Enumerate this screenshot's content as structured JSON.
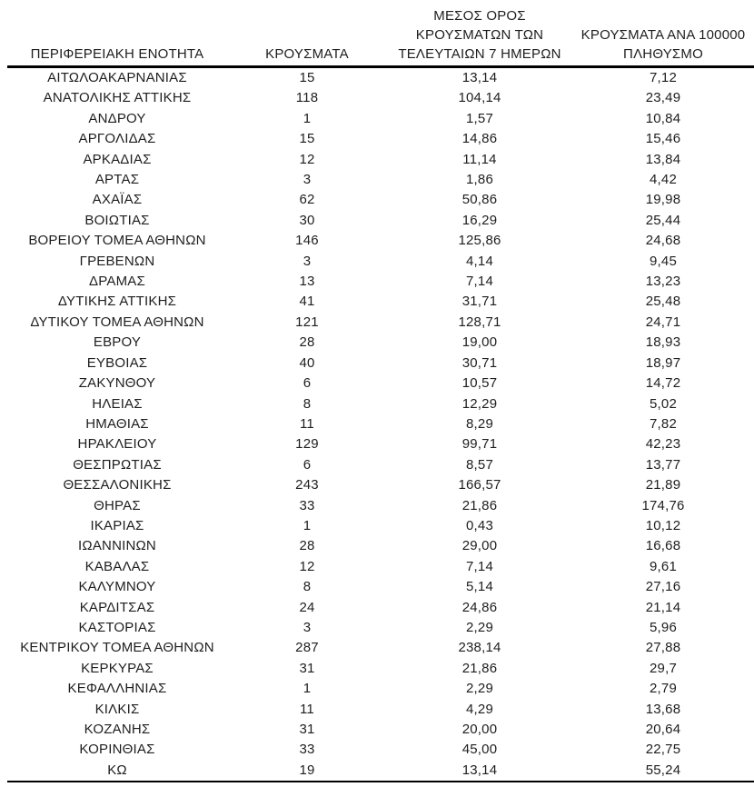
{
  "colors": {
    "background": "#ffffff",
    "text": "#1e1e1e",
    "rule": "#000000"
  },
  "table": {
    "columns": [
      {
        "id": "region",
        "lines": [
          "ΠΕΡΙΦΕΡΕΙΑΚΗ ΕΝΟΤΗΤΑ"
        ]
      },
      {
        "id": "cases",
        "lines": [
          "ΚΡΟΥΣΜΑΤΑ"
        ]
      },
      {
        "id": "avg7",
        "lines": [
          "ΜΕΣΟΣ ΟΡΟΣ",
          "ΚΡΟΥΣΜΑΤΩΝ ΤΩΝ",
          "ΤΕΛΕΥΤΑΙΩΝ 7 ΗΜΕΡΩΝ"
        ]
      },
      {
        "id": "per100k",
        "lines": [
          "ΚΡΟΥΣΜΑΤΑ ΑΝΑ 100000",
          "ΠΛΗΘΥΣΜΟ"
        ]
      }
    ],
    "rows": [
      [
        "ΑΙΤΩΛΟΑΚΑΡΝΑΝΙΑΣ",
        "15",
        "13,14",
        "7,12"
      ],
      [
        "ΑΝΑΤΟΛΙΚΗΣ ΑΤΤΙΚΗΣ",
        "118",
        "104,14",
        "23,49"
      ],
      [
        "ΑΝΔΡΟΥ",
        "1",
        "1,57",
        "10,84"
      ],
      [
        "ΑΡΓΟΛΙΔΑΣ",
        "15",
        "14,86",
        "15,46"
      ],
      [
        "ΑΡΚΑΔΙΑΣ",
        "12",
        "11,14",
        "13,84"
      ],
      [
        "ΑΡΤΑΣ",
        "3",
        "1,86",
        "4,42"
      ],
      [
        "ΑΧΑΪΑΣ",
        "62",
        "50,86",
        "19,98"
      ],
      [
        "ΒΟΙΩΤΙΑΣ",
        "30",
        "16,29",
        "25,44"
      ],
      [
        "ΒΟΡΕΙΟΥ ΤΟΜΕΑ ΑΘΗΝΩΝ",
        "146",
        "125,86",
        "24,68"
      ],
      [
        "ΓΡΕΒΕΝΩΝ",
        "3",
        "4,14",
        "9,45"
      ],
      [
        "ΔΡΑΜΑΣ",
        "13",
        "7,14",
        "13,23"
      ],
      [
        "ΔΥΤΙΚΗΣ ΑΤΤΙΚΗΣ",
        "41",
        "31,71",
        "25,48"
      ],
      [
        "ΔΥΤΙΚΟΥ ΤΟΜΕΑ ΑΘΗΝΩΝ",
        "121",
        "128,71",
        "24,71"
      ],
      [
        "ΕΒΡΟΥ",
        "28",
        "19,00",
        "18,93"
      ],
      [
        "ΕΥΒΟΙΑΣ",
        "40",
        "30,71",
        "18,97"
      ],
      [
        "ΖΑΚΥΝΘΟΥ",
        "6",
        "10,57",
        "14,72"
      ],
      [
        "ΗΛΕΙΑΣ",
        "8",
        "12,29",
        "5,02"
      ],
      [
        "ΗΜΑΘΙΑΣ",
        "11",
        "8,29",
        "7,82"
      ],
      [
        "ΗΡΑΚΛΕΙΟΥ",
        "129",
        "99,71",
        "42,23"
      ],
      [
        "ΘΕΣΠΡΩΤΙΑΣ",
        "6",
        "8,57",
        "13,77"
      ],
      [
        "ΘΕΣΣΑΛΟΝΙΚΗΣ",
        "243",
        "166,57",
        "21,89"
      ],
      [
        "ΘΗΡΑΣ",
        "33",
        "21,86",
        "174,76"
      ],
      [
        "ΙΚΑΡΙΑΣ",
        "1",
        "0,43",
        "10,12"
      ],
      [
        "ΙΩΑΝΝΙΝΩΝ",
        "28",
        "29,00",
        "16,68"
      ],
      [
        "ΚΑΒΑΛΑΣ",
        "12",
        "7,14",
        "9,61"
      ],
      [
        "ΚΑΛΥΜΝΟΥ",
        "8",
        "5,14",
        "27,16"
      ],
      [
        "ΚΑΡΔΙΤΣΑΣ",
        "24",
        "24,86",
        "21,14"
      ],
      [
        "ΚΑΣΤΟΡΙΑΣ",
        "3",
        "2,29",
        "5,96"
      ],
      [
        "ΚΕΝΤΡΙΚΟΥ ΤΟΜΕΑ ΑΘΗΝΩΝ",
        "287",
        "238,14",
        "27,88"
      ],
      [
        "ΚΕΡΚΥΡΑΣ",
        "31",
        "21,86",
        "29,7"
      ],
      [
        "ΚΕΦΑΛΛΗΝΙΑΣ",
        "1",
        "2,29",
        "2,79"
      ],
      [
        "ΚΙΛΚΙΣ",
        "11",
        "4,29",
        "13,68"
      ],
      [
        "ΚΟΖΑΝΗΣ",
        "31",
        "20,00",
        "20,64"
      ],
      [
        "ΚΟΡΙΝΘΙΑΣ",
        "33",
        "45,00",
        "22,75"
      ],
      [
        "ΚΩ",
        "19",
        "13,14",
        "55,24"
      ]
    ]
  }
}
